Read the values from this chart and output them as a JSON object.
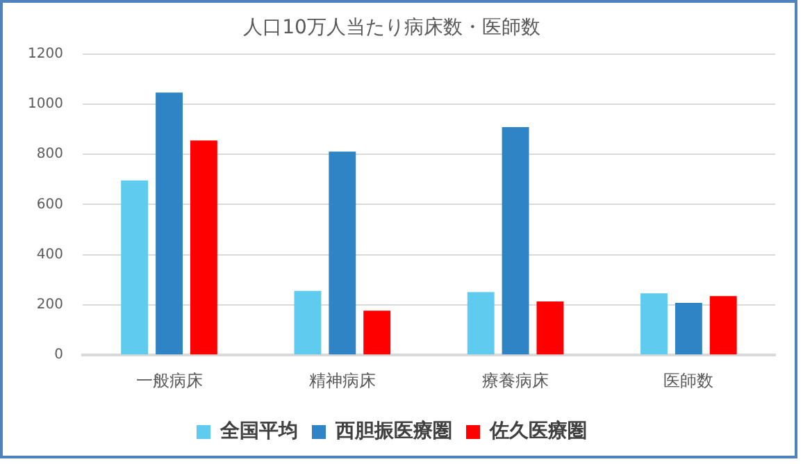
{
  "chart_data": {
    "type": "bar",
    "title": "人口10万人当たり病床数・医師数",
    "categories": [
      "一般病床",
      "精神病床",
      "療養病床",
      "医師数"
    ],
    "series": [
      {
        "name": "全国平均",
        "color": "#5fcbef",
        "values": [
          696,
          256,
          251,
          246
        ]
      },
      {
        "name": "西胆振医療圏",
        "color": "#2e84c4",
        "values": [
          1046,
          811,
          908,
          208
        ]
      },
      {
        "name": "佐久医療圏",
        "color": "#ff0000",
        "values": [
          855,
          177,
          214,
          235
        ]
      }
    ],
    "ylim": [
      0,
      1200
    ],
    "yticks": [
      0,
      200,
      400,
      600,
      800,
      1000,
      1200
    ],
    "grid": "y",
    "legend": "bottom"
  }
}
